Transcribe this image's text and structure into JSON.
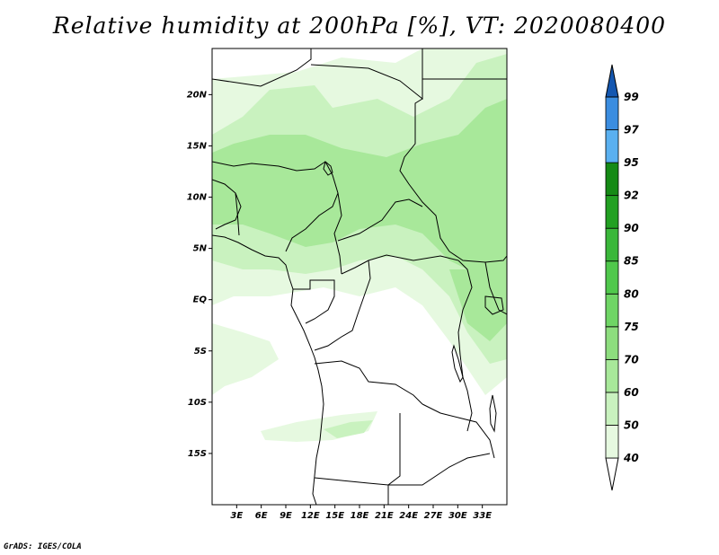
{
  "title": "Relative humidity at 200hPa [%], VT: 2020080400",
  "credit": "GrADS: IGES/COLA",
  "map": {
    "lon_range": [
      0,
      36
    ],
    "lat_range": [
      -20,
      24.5
    ],
    "lat_ticks": [
      {
        "value": 20,
        "label": "20N"
      },
      {
        "value": 15,
        "label": "15N"
      },
      {
        "value": 10,
        "label": "10N"
      },
      {
        "value": 5,
        "label": "5N"
      },
      {
        "value": 0,
        "label": "EQ"
      },
      {
        "value": -5,
        "label": "5S"
      },
      {
        "value": -10,
        "label": "10S"
      },
      {
        "value": -15,
        "label": "15S"
      }
    ],
    "lon_ticks": [
      {
        "value": 3,
        "label": "3E"
      },
      {
        "value": 6,
        "label": "6E"
      },
      {
        "value": 9,
        "label": "9E"
      },
      {
        "value": 12,
        "label": "12E"
      },
      {
        "value": 15,
        "label": "15E"
      },
      {
        "value": 18,
        "label": "18E"
      },
      {
        "value": 21,
        "label": "21E"
      },
      {
        "value": 24,
        "label": "24E"
      },
      {
        "value": 27,
        "label": "27E"
      },
      {
        "value": 30,
        "label": "30E"
      },
      {
        "value": 33,
        "label": "33E"
      }
    ]
  },
  "colorbar": {
    "levels": [
      "40",
      "50",
      "60",
      "70",
      "75",
      "80",
      "85",
      "90",
      "92",
      "95",
      "97",
      "99"
    ],
    "colors": [
      "#e6f9e0",
      "#c9f2bf",
      "#a8e89a",
      "#8ddd7e",
      "#6fd565",
      "#50c84c",
      "#3ab73a",
      "#22a022",
      "#158a15",
      "#5ab0f0",
      "#3b8de0",
      "#1f6dcc",
      "#1457b0"
    ],
    "under_color": "#ffffff",
    "over_color": "#1457b0"
  },
  "colors": {
    "humid_light": "#e6f9e0",
    "humid_mid": "#c9f2bf",
    "humid_high": "#a8e89a",
    "border": "#000000"
  }
}
